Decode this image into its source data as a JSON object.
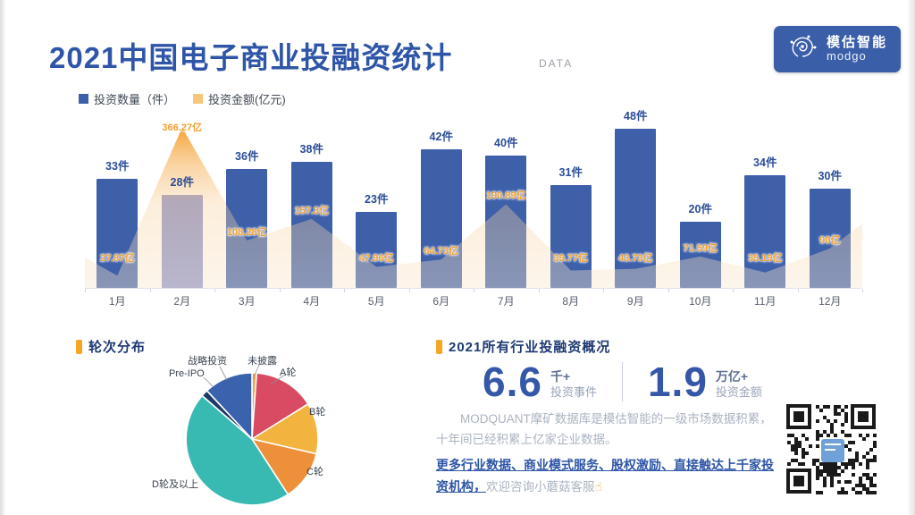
{
  "page": {
    "title": "2021中国电子商业投融资统计",
    "watermark": "DATA"
  },
  "logo": {
    "brand_cn": "模估智能",
    "brand_en": "modgo"
  },
  "legend": [
    {
      "label": "投资数量（件）",
      "color": "#3d60a9"
    },
    {
      "label": "投资金额(亿元)",
      "color": "#f5a732"
    }
  ],
  "chart_data": [
    {
      "type": "bar",
      "title": "月度投融资（柱状=数量，面积=金额）",
      "categories": [
        "1月",
        "2月",
        "3月",
        "4月",
        "5月",
        "6月",
        "7月",
        "8月",
        "9月",
        "10月",
        "11月",
        "12月"
      ],
      "series": [
        {
          "name": "投资数量（件）",
          "type": "bar",
          "unit": "件",
          "color": "#3d60a9",
          "values": [
            33,
            28,
            36,
            38,
            23,
            42,
            40,
            31,
            48,
            20,
            34,
            30
          ]
        },
        {
          "name": "投资金额(亿元)",
          "type": "area",
          "unit": "亿",
          "color": "#f5a732",
          "values": [
            27.87,
            366.27,
            108.28,
            157.3,
            47.96,
            64.73,
            190.89,
            39.77,
            43.73,
            71.59,
            35.19,
            90
          ]
        }
      ],
      "ylim_count": [
        0,
        54
      ],
      "ylim_amount": [
        0,
        400
      ],
      "grid": false,
      "legend_position": "top-left"
    },
    {
      "type": "pie",
      "title": "轮次分布",
      "segments": [
        {
          "label": "未披露",
          "color": "#f6a04a",
          "start": 0,
          "end": 4
        },
        {
          "label": "A轮",
          "color": "#d84b63",
          "start": 4,
          "end": 58
        },
        {
          "label": "B轮",
          "color": "#f2b43e",
          "start": 58,
          "end": 103
        },
        {
          "label": "C轮",
          "color": "#ee8f3a",
          "start": 103,
          "end": 147
        },
        {
          "label": "D轮及以上",
          "color": "#38b9b2",
          "start": 147,
          "end": 311
        },
        {
          "label": "Pre-IPO",
          "color": "#1d3a66",
          "start": 311,
          "end": 317
        },
        {
          "label": "战略投资",
          "color": "#3a62ad",
          "start": 317,
          "end": 360
        }
      ]
    }
  ],
  "sections": {
    "pie_header": "轮次分布",
    "overview_header": "2021所有行业投融资概况"
  },
  "stats": [
    {
      "value": "6.6",
      "unit": "千+",
      "label": "投资事件"
    },
    {
      "value": "1.9",
      "unit": "万亿+",
      "label": "投资金额"
    }
  ],
  "description": {
    "line1": "MODQUANT摩矿数据库是模估智能的一级市场数据积累，十年间已经积累上亿家企业数据。",
    "promo_bold": "更多行业数据、商业模式服务、股权激励、直接触达上千家投资机构，",
    "promo_tail": "欢迎咨询小蘑菇客服",
    "hand_icon": "☝"
  },
  "colors": {
    "accent_blue": "#3557a8",
    "accent_orange": "#f5a623",
    "bar_blue": "#3d60a9",
    "bar_light": "#8d95cc",
    "amount_label": "#f09f2e"
  }
}
